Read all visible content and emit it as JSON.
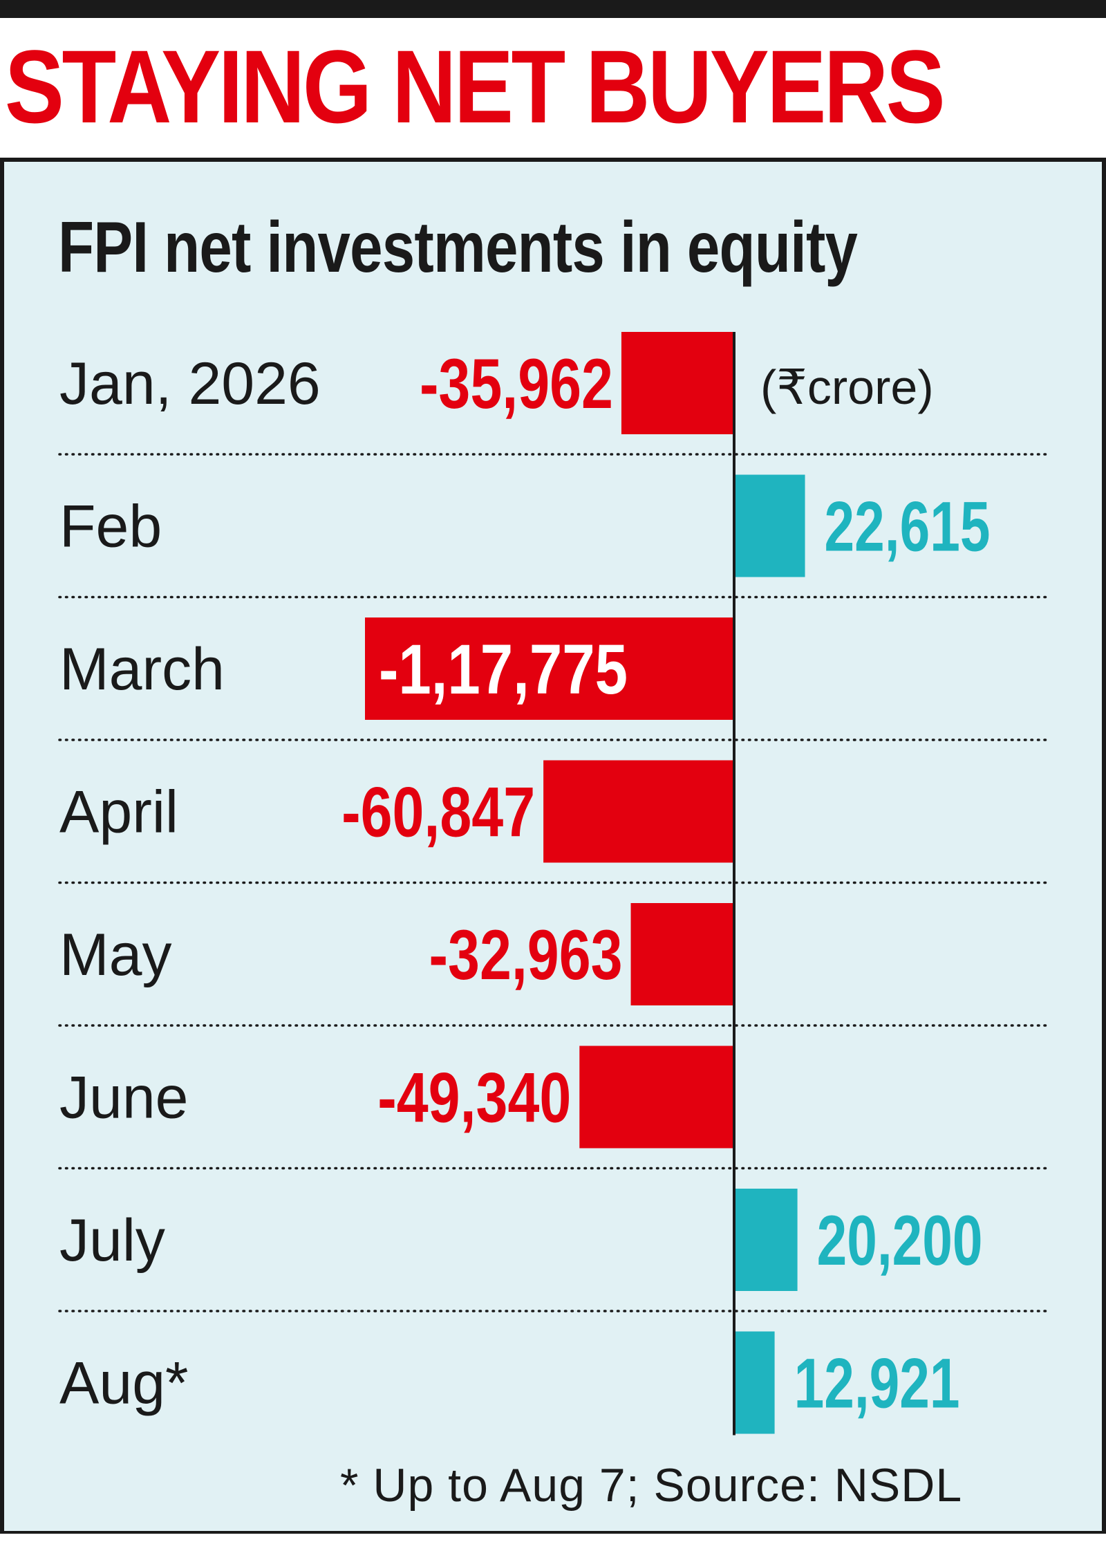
{
  "headline": "STAYING NET BUYERS",
  "unit_note": "(₹crore)",
  "footnote": "* Up to Aug 7; Source: NSDL",
  "colors": {
    "negative": "#e3000f",
    "positive": "#1fb4bf",
    "panel_background": "#e1f1f4",
    "text": "#1a1a1a",
    "value_on_bar": "#ffffff"
  },
  "chart_data": {
    "type": "bar",
    "orientation": "horizontal",
    "title": "FPI net investments in equity",
    "categories": [
      "Jan, 2026",
      "Feb",
      "March",
      "April",
      "May",
      "June",
      "July",
      "Aug*"
    ],
    "values": [
      -35962,
      22615,
      -117775,
      -60847,
      -32963,
      -49340,
      20200,
      12921
    ],
    "value_labels": [
      "-35,962",
      "22,615",
      "-1,17,775",
      "-60,847",
      "-32,963",
      "-49,340",
      "20,200",
      "12,921"
    ],
    "grid": false,
    "legend": "none"
  }
}
